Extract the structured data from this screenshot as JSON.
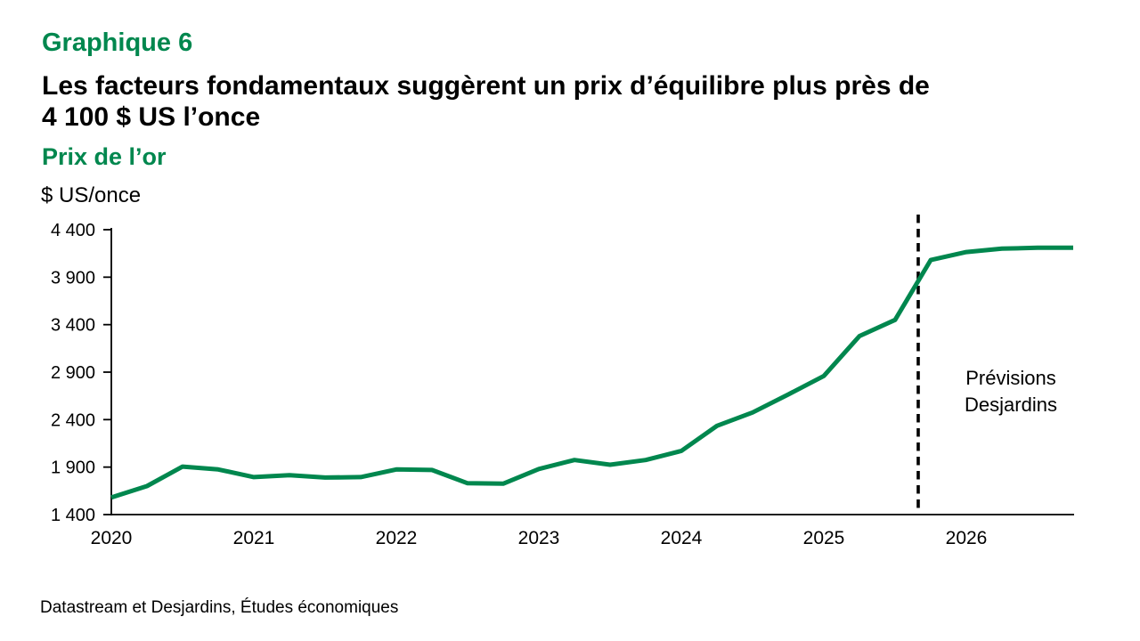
{
  "theme": {
    "accent_green": "#00874E",
    "axis_color": "#000000",
    "background": "#ffffff"
  },
  "header": {
    "kicker": "Graphique 6",
    "title_lines": [
      "Les facteurs fondamentaux suggèrent un prix d’équilibre plus près de",
      "4 100 $ US l’once"
    ],
    "subtitle": "Prix de l’or",
    "unit_label": "$ US/once"
  },
  "chart_data": {
    "type": "line",
    "title": "Prix de l’or",
    "ylabel": "$ US/once",
    "xlabel": "",
    "grid": false,
    "legend_position": "none",
    "series_name": "Prix de l’or (trimestriel)",
    "categories": [
      "2020T1",
      "2020T2",
      "2020T3",
      "2020T4",
      "2021T1",
      "2021T2",
      "2021T3",
      "2021T4",
      "2022T1",
      "2022T2",
      "2022T3",
      "2022T4",
      "2023T1",
      "2023T2",
      "2023T3",
      "2023T4",
      "2024T1",
      "2024T2",
      "2024T3",
      "2024T4",
      "2025T1",
      "2025T2",
      "2025T3",
      "2025T4",
      "2026T1",
      "2026T2",
      "2026T3",
      "2026T4"
    ],
    "values": [
      1580,
      1700,
      1905,
      1875,
      1795,
      1815,
      1790,
      1795,
      1875,
      1870,
      1730,
      1725,
      1880,
      1975,
      1925,
      1975,
      2070,
      2335,
      2475,
      2665,
      2860,
      3280,
      3450,
      4080,
      4165,
      4200,
      4210,
      4210
    ],
    "ylim": [
      1400,
      4400
    ],
    "y_ticks": [
      1400,
      1900,
      2400,
      2900,
      3400,
      3900,
      4400
    ],
    "y_tick_labels": [
      "1 400",
      "1 900",
      "2 400",
      "2 900",
      "3 400",
      "3 900",
      "4 400"
    ],
    "x_tick_labels": [
      "2020",
      "2021",
      "2022",
      "2023",
      "2024",
      "2025",
      "2026"
    ],
    "line_color": "#00874E",
    "forecast_start_index": 23,
    "forecast_divider_index": 22.65,
    "annotation": {
      "line1": "Prévisions",
      "line2": "Desjardins"
    }
  },
  "footer": {
    "source": "Datastream et Desjardins, Études économiques"
  }
}
